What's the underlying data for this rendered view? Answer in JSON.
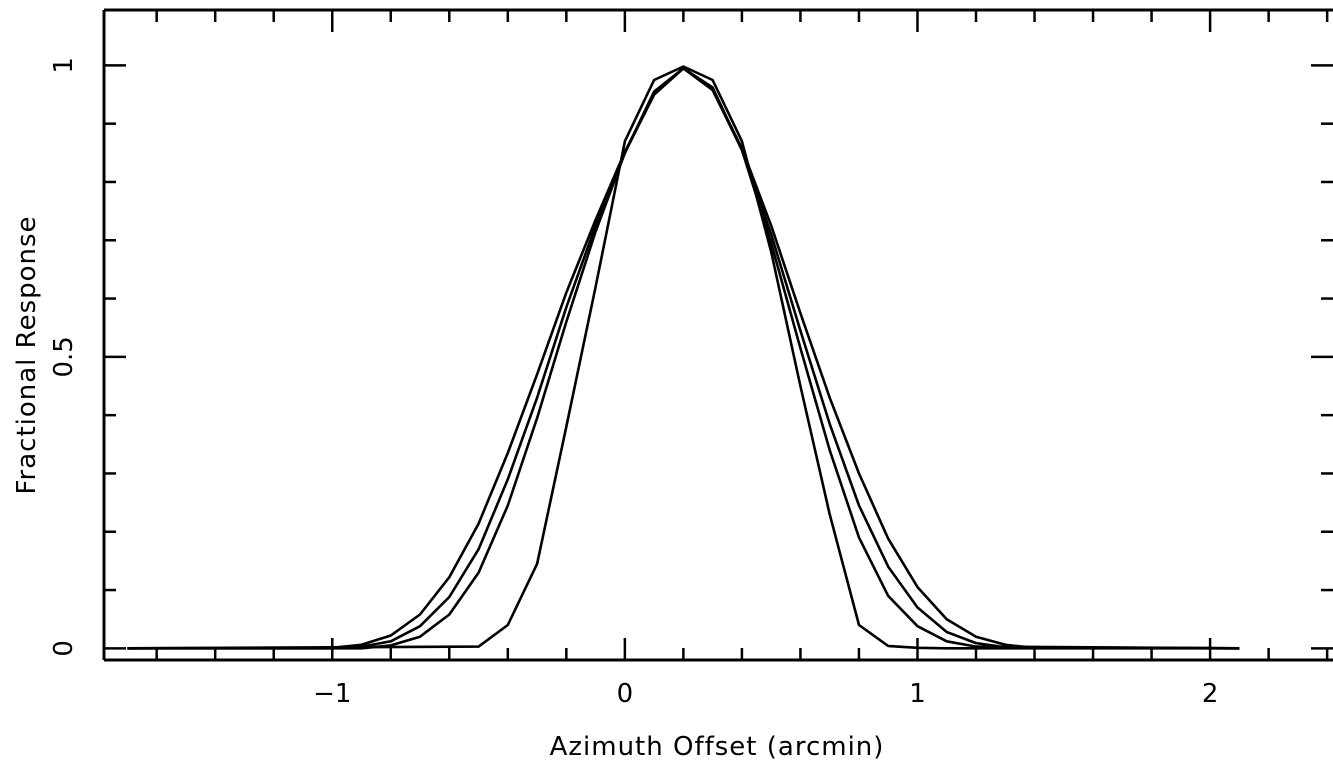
{
  "chart_data": {
    "type": "line",
    "title": "",
    "xlabel": "Azimuth Offset (arcmin)",
    "ylabel": "Fractional Response",
    "xlim": [
      -1.78,
      2.42
    ],
    "ylim": [
      -0.02,
      1.095
    ],
    "x_ticks": [
      {
        "value": -1,
        "label": "−1"
      },
      {
        "value": 0,
        "label": "0"
      },
      {
        "value": 1,
        "label": "1"
      },
      {
        "value": 2,
        "label": "2"
      }
    ],
    "y_ticks": [
      {
        "value": 0,
        "label": "0"
      },
      {
        "value": 0.5,
        "label": "0.5"
      },
      {
        "value": 1,
        "label": "1"
      }
    ],
    "grid": false,
    "legend": "none",
    "series": [
      {
        "x": [
          -1.7,
          -1.0,
          -0.9,
          -0.8,
          -0.7,
          -0.6,
          -0.5,
          -0.4,
          -0.3,
          -0.2,
          -0.1,
          0.0,
          0.1,
          0.2,
          0.3,
          0.4,
          0.5,
          0.6,
          0.7,
          0.8,
          0.9,
          1.0,
          1.1,
          1.2,
          1.3,
          1.4,
          2.1
        ],
        "y": [
          0,
          0.001,
          0.006,
          0.022,
          0.058,
          0.122,
          0.214,
          0.335,
          0.47,
          0.61,
          0.735,
          0.852,
          0.95,
          0.995,
          0.958,
          0.858,
          0.725,
          0.575,
          0.43,
          0.3,
          0.188,
          0.105,
          0.05,
          0.02,
          0.006,
          0.001,
          0
        ]
      },
      {
        "x": [
          -1.7,
          -1.0,
          -0.9,
          -0.8,
          -0.7,
          -0.6,
          -0.5,
          -0.4,
          -0.3,
          -0.2,
          -0.1,
          0.0,
          0.1,
          0.2,
          0.3,
          0.4,
          0.5,
          0.6,
          0.7,
          0.8,
          0.9,
          1.0,
          1.1,
          1.2,
          1.3,
          2.1
        ],
        "y": [
          0,
          0.0,
          0.003,
          0.012,
          0.038,
          0.088,
          0.17,
          0.29,
          0.43,
          0.585,
          0.725,
          0.85,
          0.95,
          0.995,
          0.958,
          0.855,
          0.71,
          0.545,
          0.385,
          0.245,
          0.14,
          0.07,
          0.028,
          0.009,
          0.002,
          0
        ]
      },
      {
        "x": [
          -1.7,
          -0.9,
          -0.8,
          -0.7,
          -0.6,
          -0.5,
          -0.4,
          -0.3,
          -0.2,
          -0.1,
          0.0,
          0.1,
          0.2,
          0.3,
          0.4,
          0.5,
          0.6,
          0.7,
          0.8,
          0.9,
          1.0,
          1.1,
          1.2,
          2.1
        ],
        "y": [
          0,
          0.0,
          0.005,
          0.02,
          0.058,
          0.13,
          0.245,
          0.395,
          0.56,
          0.715,
          0.85,
          0.955,
          0.995,
          0.962,
          0.855,
          0.695,
          0.515,
          0.34,
          0.19,
          0.09,
          0.038,
          0.012,
          0.003,
          0
        ]
      },
      {
        "x": [
          -1.7,
          -0.5,
          -0.4,
          -0.3,
          -0.2,
          -0.1,
          0.0,
          0.1,
          0.2,
          0.3,
          0.4,
          0.5,
          0.6,
          0.7,
          0.8,
          0.9,
          1.0,
          1.1,
          2.1
        ],
        "y": [
          0,
          0.003,
          0.04,
          0.145,
          0.38,
          0.62,
          0.87,
          0.975,
          0.998,
          0.975,
          0.87,
          0.68,
          0.45,
          0.23,
          0.04,
          0.004,
          0.001,
          0.0,
          0
        ]
      }
    ]
  }
}
